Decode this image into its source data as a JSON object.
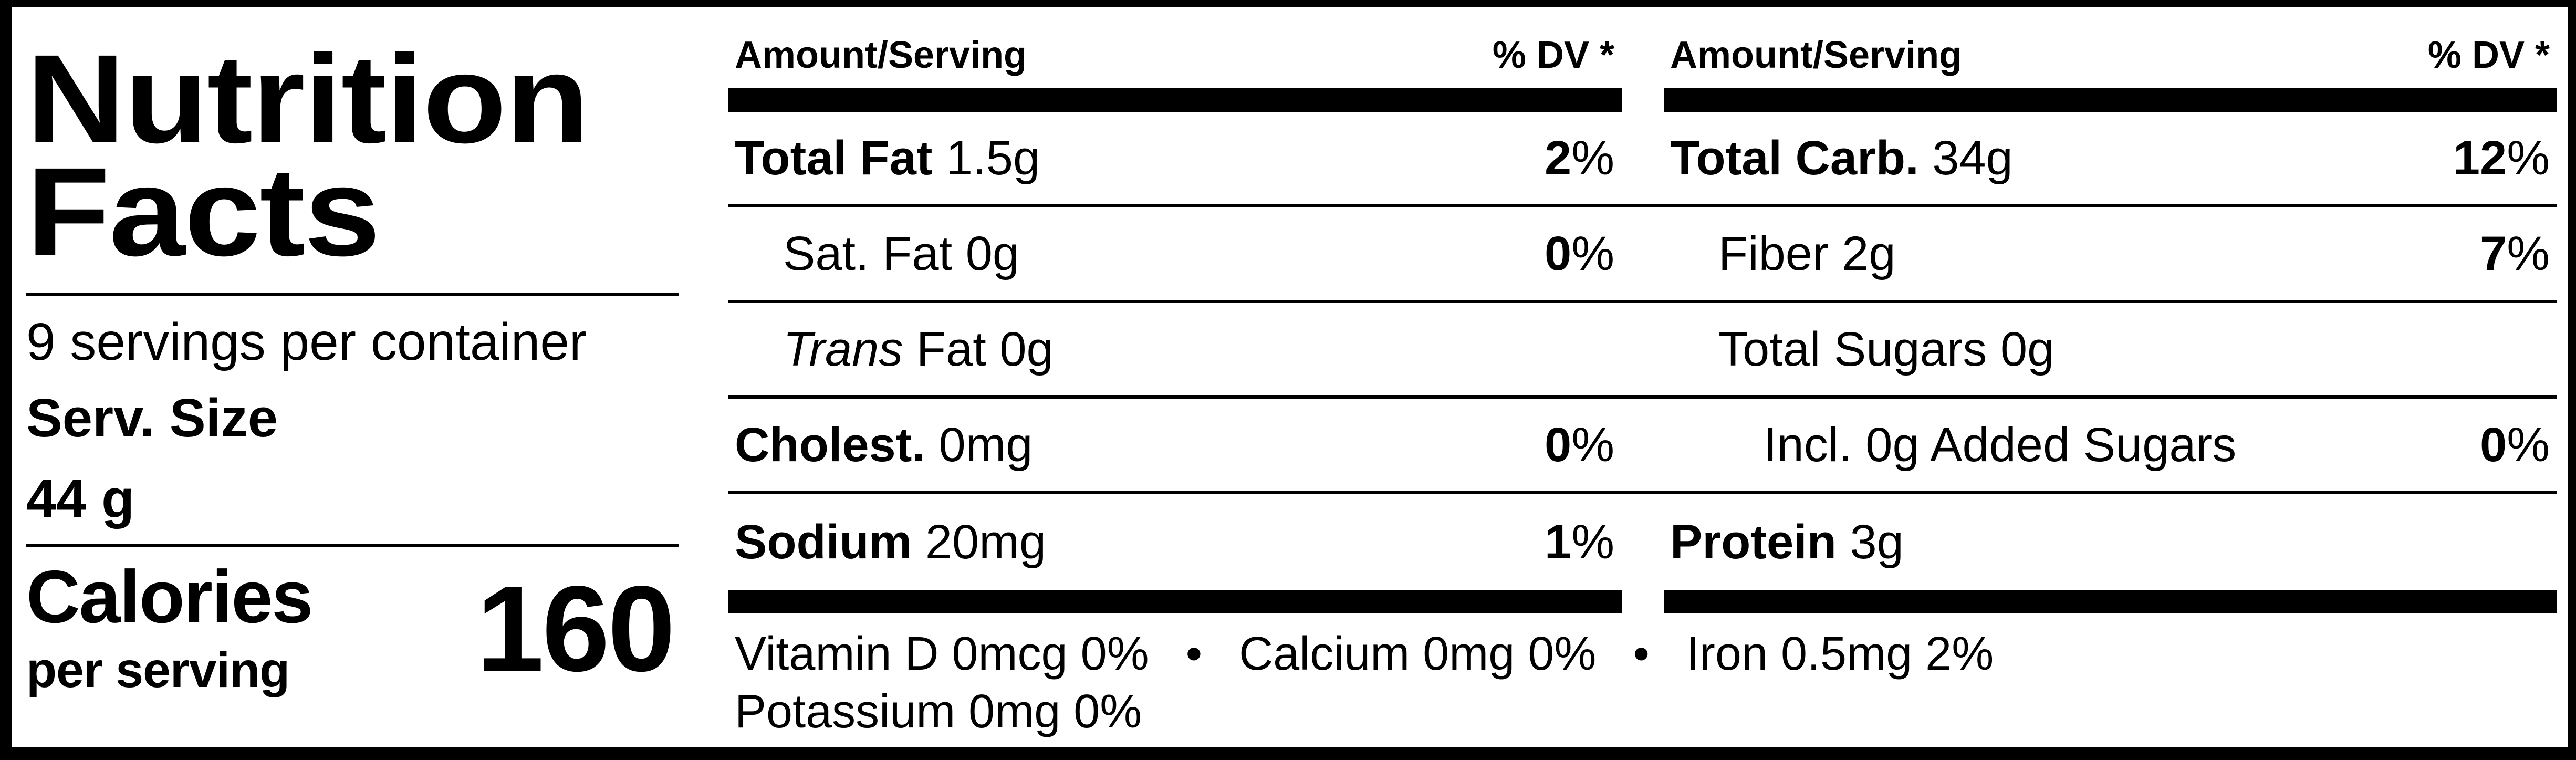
{
  "left_panel": {
    "title_line1": "Nutrition",
    "title_line2": "Facts",
    "servings_per_container": "9 servings per container",
    "serving_size_label": "Serv. Size",
    "serving_size_value": "44 g",
    "calories": {
      "label": "Calories",
      "sublabel": "per serving",
      "value": "160"
    }
  },
  "middle_column": {
    "header": {
      "amount": "Amount/Serving",
      "dv": "% DV *"
    },
    "rows": [
      {
        "bold": "Total Fat",
        "text": " 1.5g",
        "dv": "2",
        "unit": "%"
      },
      {
        "bold": "",
        "text": "Sat. Fat 0g",
        "dv": "0",
        "unit": "%"
      },
      {
        "bold": "",
        "italic": "Trans",
        "text": " Fat 0g",
        "dv": "",
        "unit": ""
      },
      {
        "bold": "Cholest.",
        "text": " 0mg",
        "dv": "0",
        "unit": "%"
      },
      {
        "bold": "Sodium",
        "text": " 20mg",
        "dv": "1",
        "unit": "%"
      }
    ]
  },
  "right_column": {
    "header": {
      "amount": "Amount/Serving",
      "dv": "% DV *"
    },
    "rows": [
      {
        "bold": "Total Carb.",
        "text": " 34g",
        "dv": "12",
        "unit": "%"
      },
      {
        "bold": "",
        "text": "Fiber 2g",
        "dv": "7",
        "unit": "%"
      },
      {
        "bold": "",
        "text": "Total Sugars 0g",
        "dv": "",
        "unit": ""
      },
      {
        "bold": "",
        "text": "Incl. 0g Added Sugars",
        "dv": "0",
        "unit": "%"
      },
      {
        "bold": "Protein",
        "text": " 3g",
        "dv": "",
        "unit": ""
      }
    ]
  },
  "footer": {
    "line1": "Vitamin D 0mcg 0%  •  Calcium 0mg 0%  •  Iron 0.5mg 2%",
    "line2": "Potassium 0mg 0%"
  },
  "colors": {
    "foreground": "#000000",
    "background": "#ffffff"
  }
}
